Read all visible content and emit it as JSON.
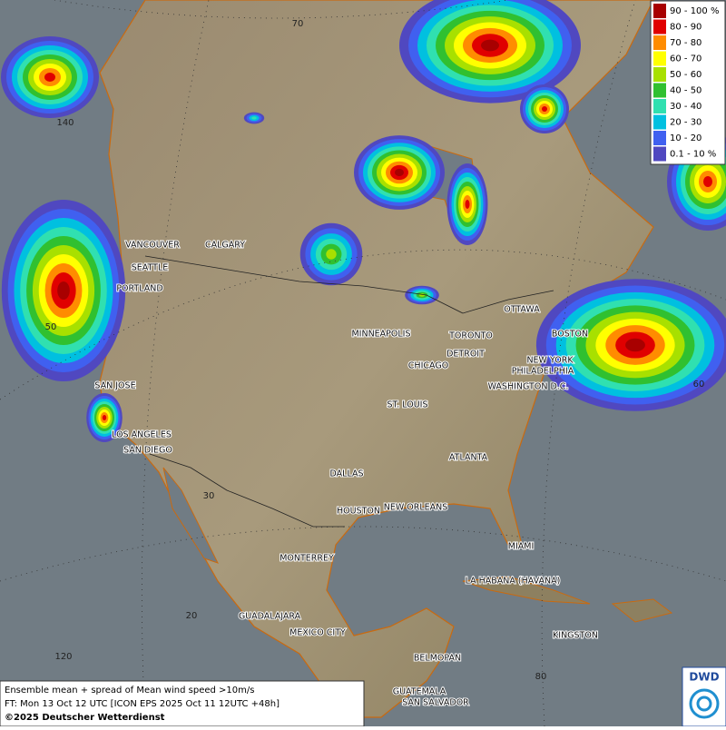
{
  "legend": {
    "items": [
      {
        "label": "90 - 100 %",
        "color": "#a80000"
      },
      {
        "label": "80 - 90",
        "color": "#e00000"
      },
      {
        "label": "70 - 80",
        "color": "#ff8c00"
      },
      {
        "label": "60 - 70",
        "color": "#ffff00"
      },
      {
        "label": "50 - 60",
        "color": "#a8e000"
      },
      {
        "label": "40 - 50",
        "color": "#30c030"
      },
      {
        "label": "30 - 40",
        "color": "#30e0b0"
      },
      {
        "label": "20 - 30",
        "color": "#00c0e0"
      },
      {
        "label": "10 - 20",
        "color": "#4060f0"
      },
      {
        "label": "0.1 - 10 %",
        "color": "#5048c0"
      }
    ]
  },
  "cities": [
    "VANCOUVER",
    "CALGARY",
    "SEATTLE",
    "PORTLAND",
    "MINNEAPOLIS",
    "OTTAWA",
    "TORONTO",
    "BOSTON",
    "DETROIT",
    "NEW YORK",
    "PHILADELPHIA",
    "CHICAGO",
    "WASHINGTON D.C.",
    "SAN JOSE",
    "ST. LOUIS",
    "LOS ANGELES",
    "SAN DIEGO",
    "ATLANTA",
    "DALLAS",
    "HOUSTON",
    "NEW ORLEANS",
    "MIAMI",
    "MONTERREY",
    "LA HABANA (HAVANA)",
    "GUADALAJARA",
    "MEXICO CITY",
    "KINGSTON",
    "BELMOPAN",
    "GUATEMALA",
    "SAN SALVADOR"
  ],
  "graticule_labels": [
    "70",
    "140",
    "50",
    "30",
    "20",
    "120",
    "80",
    "60"
  ],
  "caption": {
    "line1": "Ensemble mean + spread of Mean wind speed >10m/s",
    "line2": "FT: Mon 13 Oct 12 UTC [ICON EPS 2025 Oct 11 12UTC +48h]",
    "line3": "©2025 Deutscher Wetterdienst"
  },
  "logo": "DWD"
}
